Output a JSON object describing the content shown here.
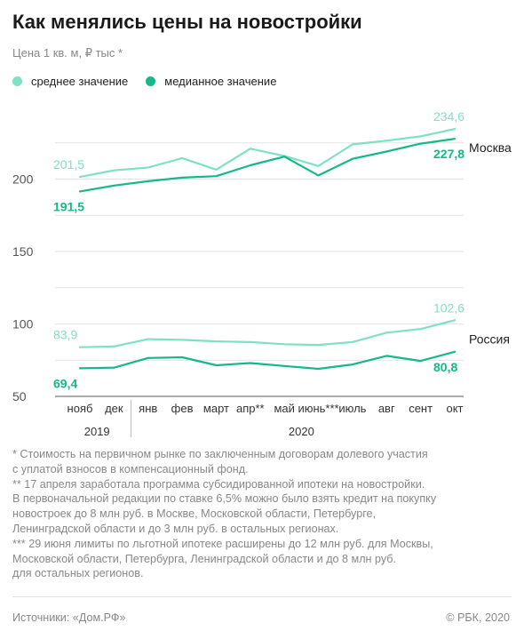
{
  "title": "Как менялись цены на новостройки",
  "subtitle": "Цена 1 кв. м, ₽ тыс *",
  "legend": [
    {
      "label": "среднее значение",
      "color": "#7ee0c4"
    },
    {
      "label": "медианное значение",
      "color": "#14b88a"
    }
  ],
  "notes": [
    "* Стоимость на первичном рынке по заключенным договорам долевого участия",
    "с уплатой взносов в компенсационный фонд.",
    "** 17 апреля заработала программа субсидированной ипотеки на новостройки.",
    "В первоначальной редакции по ставке 6,5% можно было взять кредит на покупку",
    "новостроек до 8 млн руб. в Москве, Московской области, Петербурге,",
    "Ленинградской области и до 3 млн руб. в остальных регионах.",
    "*** 29 июня лимиты по льготной ипотеке расширены до 12 млн руб. для Москвы,",
    "Московской области, Петербурга, Ленинградской области и до 8 млн руб.",
    "для остальных регионов."
  ],
  "footer": {
    "source": "Источники: «Дом.РФ»",
    "copyright": "© РБК, 2020"
  },
  "chart_data": {
    "type": "line",
    "categories": [
      "нояб",
      "дек",
      "янв",
      "фев",
      "март",
      "апр**",
      "май",
      "июнь***",
      "июль",
      "авг",
      "сент",
      "окт"
    ],
    "year_labels": [
      {
        "label": "2019",
        "at": 0.5
      },
      {
        "label": "2020",
        "at": 6.5
      }
    ],
    "year_divider_after": 1,
    "ylim": [
      50,
      250
    ],
    "yticks": [
      50,
      100,
      150,
      200
    ],
    "grid": true,
    "colors": {
      "mean": "#7ee0c4",
      "median": "#14b88a"
    },
    "series": [
      {
        "group": "Москва",
        "kind": "mean",
        "values": [
          201.5,
          206,
          208,
          214.5,
          206.5,
          221,
          216,
          209,
          224,
          226.5,
          229.5,
          234.6
        ]
      },
      {
        "group": "Москва",
        "kind": "median",
        "values": [
          191.5,
          195.5,
          198.5,
          201,
          202,
          209.5,
          215.5,
          202.5,
          214,
          219,
          224.5,
          227.8
        ]
      },
      {
        "group": "Россия",
        "kind": "mean",
        "values": [
          83.9,
          84.5,
          89.5,
          89,
          88,
          87.5,
          86,
          85.5,
          87.5,
          94,
          96.5,
          102.6
        ]
      },
      {
        "group": "Россия",
        "kind": "median",
        "values": [
          69.4,
          69.8,
          76.5,
          77,
          71.5,
          73,
          71,
          69,
          72,
          78,
          74.5,
          80.8
        ]
      }
    ],
    "series_labels": [
      {
        "text": "Москва",
        "near": 0
      },
      {
        "text": "Россия",
        "near": 2
      }
    ],
    "value_labels": [
      {
        "series": 0,
        "index": 0,
        "text": "201,5"
      },
      {
        "series": 0,
        "index": 11,
        "text": "234,6"
      },
      {
        "series": 1,
        "index": 0,
        "text": "191,5"
      },
      {
        "series": 1,
        "index": 11,
        "text": "227,8"
      },
      {
        "series": 2,
        "index": 0,
        "text": "83,9"
      },
      {
        "series": 2,
        "index": 11,
        "text": "102,6"
      },
      {
        "series": 3,
        "index": 0,
        "text": "69,4"
      },
      {
        "series": 3,
        "index": 11,
        "text": "80,8"
      }
    ]
  }
}
